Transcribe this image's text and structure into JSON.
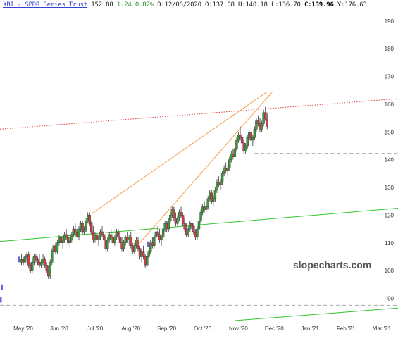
{
  "header": {
    "symbol": "XBI",
    "name_sep": " - ",
    "name": "SPDR Series Trust",
    "last": "152.88",
    "change": "1.24",
    "change_pct": "0.82%",
    "date_label": "D:",
    "date": "12/08/2020",
    "open_label": "O:",
    "open": "137.08",
    "high_label": "H:",
    "high": "140.18",
    "low_label": "L:",
    "low": "136.70",
    "close_label": "C:",
    "close": "139.96",
    "y_label": "Y:",
    "y": "176.63"
  },
  "watermark": "slopecharts.com",
  "colors": {
    "up_candle": "#3a9a3a",
    "down_candle": "#d23b52",
    "trendline_orange": "#f5a04a",
    "trendline_green": "#2ec52e",
    "trendline_red_dotted": "#dd4444",
    "dashed_level": "#aaaaaa",
    "volume_marker": "#6b6bd8"
  },
  "chart_data": {
    "type": "candlestick",
    "ylim": [
      82,
      194
    ],
    "y_ticks": [
      "190",
      "180",
      "170",
      "160",
      "150",
      "140",
      "130",
      "120",
      "110",
      "100",
      "90"
    ],
    "y_tick_values": [
      190,
      180,
      170,
      160,
      150,
      140,
      130,
      120,
      110,
      100,
      90
    ],
    "x_ticks": [
      "May '20",
      "Jun '20",
      "Jul '20",
      "Aug '20",
      "Sep '20",
      "Oct '20",
      "Nov '20",
      "Dec '20",
      "Jan '21",
      "Feb '21",
      "Mar '21"
    ],
    "x_tick_months": [
      0,
      1,
      2,
      3,
      4,
      5,
      6,
      7,
      8,
      9,
      10
    ],
    "xlim_months": [
      -0.55,
      10.55
    ],
    "series": [
      {
        "values": [
          [
            0.05,
            103,
            106,
            102,
            104
          ],
          [
            0.1,
            104,
            105,
            102,
            103
          ],
          [
            0.15,
            103,
            106,
            102,
            105
          ],
          [
            0.2,
            105,
            107,
            104,
            106
          ],
          [
            0.25,
            106,
            107,
            101,
            102
          ],
          [
            0.3,
            102,
            103,
            99,
            100
          ],
          [
            0.35,
            100,
            104,
            99,
            103
          ],
          [
            0.4,
            103,
            106,
            102,
            105
          ],
          [
            0.45,
            105,
            106,
            103,
            104
          ],
          [
            0.5,
            104,
            105,
            102,
            103
          ],
          [
            0.55,
            103,
            106,
            101,
            102
          ],
          [
            0.6,
            102,
            104,
            101,
            103
          ],
          [
            0.65,
            103,
            106,
            102,
            104
          ],
          [
            0.7,
            104,
            105,
            101,
            102
          ],
          [
            0.75,
            102,
            103,
            99,
            100
          ],
          [
            0.8,
            100,
            102,
            97,
            98
          ],
          [
            0.85,
            98,
            104,
            97,
            103
          ],
          [
            0.9,
            103,
            108,
            102,
            107
          ],
          [
            0.95,
            107,
            110,
            106,
            109
          ],
          [
            1.0,
            109,
            110,
            106,
            107
          ],
          [
            1.05,
            107,
            111,
            106,
            110
          ],
          [
            1.1,
            110,
            113,
            109,
            112
          ],
          [
            1.15,
            112,
            113,
            109,
            110
          ],
          [
            1.2,
            110,
            112,
            108,
            111
          ],
          [
            1.25,
            111,
            114,
            110,
            113
          ],
          [
            1.3,
            113,
            115,
            111,
            112
          ],
          [
            1.35,
            112,
            113,
            109,
            110
          ],
          [
            1.4,
            110,
            112,
            108,
            111
          ],
          [
            1.45,
            111,
            114,
            110,
            113
          ],
          [
            1.5,
            113,
            116,
            112,
            115
          ],
          [
            1.55,
            115,
            117,
            113,
            114
          ],
          [
            1.6,
            114,
            115,
            111,
            112
          ],
          [
            1.65,
            112,
            116,
            111,
            115
          ],
          [
            1.7,
            115,
            118,
            114,
            117
          ],
          [
            1.75,
            117,
            118,
            113,
            114
          ],
          [
            1.8,
            114,
            116,
            113,
            115
          ],
          [
            1.85,
            115,
            119,
            114,
            118
          ],
          [
            1.9,
            118,
            121,
            117,
            120
          ],
          [
            1.95,
            120,
            121,
            116,
            117
          ],
          [
            2.0,
            117,
            118,
            113,
            114
          ],
          [
            2.05,
            114,
            116,
            110,
            111
          ],
          [
            2.1,
            111,
            114,
            110,
            113
          ],
          [
            2.15,
            113,
            115,
            110,
            111
          ],
          [
            2.2,
            111,
            113,
            109,
            112
          ],
          [
            2.25,
            112,
            115,
            111,
            114
          ],
          [
            2.3,
            114,
            116,
            112,
            113
          ],
          [
            2.35,
            113,
            114,
            110,
            111
          ],
          [
            2.4,
            111,
            112,
            107,
            108
          ],
          [
            2.45,
            108,
            112,
            107,
            111
          ],
          [
            2.5,
            111,
            114,
            110,
            113
          ],
          [
            2.55,
            113,
            115,
            111,
            112
          ],
          [
            2.6,
            112,
            114,
            109,
            110
          ],
          [
            2.65,
            110,
            113,
            109,
            112
          ],
          [
            2.7,
            112,
            115,
            111,
            114
          ],
          [
            2.75,
            114,
            115,
            111,
            112
          ],
          [
            2.8,
            112,
            113,
            109,
            110
          ],
          [
            2.85,
            110,
            112,
            107,
            108
          ],
          [
            2.9,
            108,
            111,
            107,
            110
          ],
          [
            2.95,
            110,
            113,
            109,
            112
          ],
          [
            3.0,
            112,
            114,
            110,
            111
          ],
          [
            3.05,
            111,
            113,
            109,
            112
          ],
          [
            3.1,
            112,
            114,
            108,
            109
          ],
          [
            3.15,
            109,
            110,
            106,
            107
          ],
          [
            3.2,
            107,
            110,
            106,
            109
          ],
          [
            3.25,
            109,
            112,
            108,
            111
          ],
          [
            3.3,
            111,
            112,
            107,
            108
          ],
          [
            3.35,
            108,
            109,
            104,
            105
          ],
          [
            3.4,
            105,
            108,
            103,
            107
          ],
          [
            3.45,
            107,
            109,
            104,
            105
          ],
          [
            3.5,
            105,
            106,
            101,
            102
          ],
          [
            3.55,
            102,
            106,
            101,
            105
          ],
          [
            3.6,
            105,
            108,
            104,
            107
          ],
          [
            3.65,
            107,
            111,
            106,
            110
          ],
          [
            3.7,
            110,
            112,
            108,
            109
          ],
          [
            3.75,
            109,
            113,
            108,
            112
          ],
          [
            3.8,
            112,
            115,
            111,
            114
          ],
          [
            3.85,
            114,
            116,
            112,
            113
          ],
          [
            3.9,
            113,
            115,
            110,
            111
          ],
          [
            3.95,
            111,
            113,
            109,
            112
          ],
          [
            4.0,
            112,
            116,
            111,
            115
          ],
          [
            4.05,
            115,
            118,
            114,
            117
          ],
          [
            4.1,
            117,
            118,
            114,
            115
          ],
          [
            4.15,
            115,
            119,
            114,
            118
          ],
          [
            4.2,
            118,
            121,
            117,
            120
          ],
          [
            4.25,
            120,
            123,
            119,
            122
          ],
          [
            4.3,
            122,
            123,
            118,
            119
          ],
          [
            4.35,
            119,
            121,
            116,
            117
          ],
          [
            4.4,
            117,
            120,
            116,
            119
          ],
          [
            4.45,
            119,
            122,
            118,
            121
          ],
          [
            4.5,
            121,
            123,
            119,
            120
          ],
          [
            4.55,
            120,
            121,
            116,
            117
          ],
          [
            4.6,
            117,
            119,
            114,
            115
          ],
          [
            4.65,
            115,
            117,
            112,
            113
          ],
          [
            4.7,
            113,
            116,
            112,
            115
          ],
          [
            4.75,
            115,
            118,
            114,
            117
          ],
          [
            4.8,
            117,
            119,
            115,
            116
          ],
          [
            4.85,
            116,
            117,
            113,
            114
          ],
          [
            4.9,
            114,
            115,
            111,
            112
          ],
          [
            4.95,
            112,
            116,
            111,
            115
          ],
          [
            5.0,
            115,
            119,
            114,
            118
          ],
          [
            5.05,
            118,
            122,
            117,
            121
          ],
          [
            5.1,
            121,
            124,
            120,
            123
          ],
          [
            5.15,
            123,
            125,
            121,
            122
          ],
          [
            5.2,
            122,
            124,
            120,
            123
          ],
          [
            5.25,
            123,
            127,
            122,
            126
          ],
          [
            5.3,
            126,
            129,
            125,
            128
          ],
          [
            5.35,
            128,
            129,
            124,
            125
          ],
          [
            5.4,
            125,
            127,
            123,
            126
          ],
          [
            5.45,
            126,
            130,
            125,
            129
          ],
          [
            5.5,
            129,
            133,
            128,
            132
          ],
          [
            5.55,
            132,
            134,
            130,
            131
          ],
          [
            5.6,
            131,
            133,
            129,
            132
          ],
          [
            5.65,
            132,
            136,
            131,
            135
          ],
          [
            5.7,
            135,
            138,
            134,
            137
          ],
          [
            5.75,
            137,
            139,
            135,
            136
          ],
          [
            5.8,
            136,
            138,
            134,
            137
          ],
          [
            5.85,
            137,
            141,
            136,
            140
          ],
          [
            5.9,
            140,
            143,
            139,
            142
          ],
          [
            5.95,
            142,
            144,
            140,
            141
          ],
          [
            6.0,
            141,
            145,
            140,
            144
          ],
          [
            6.05,
            144,
            148,
            143,
            147
          ],
          [
            6.1,
            147,
            150,
            146,
            149
          ],
          [
            6.15,
            149,
            152,
            147,
            148
          ],
          [
            6.2,
            148,
            150,
            145,
            146
          ],
          [
            6.25,
            146,
            147,
            142,
            143
          ],
          [
            6.3,
            143,
            146,
            142,
            145
          ],
          [
            6.35,
            145,
            149,
            144,
            148
          ],
          [
            6.4,
            148,
            151,
            147,
            150
          ],
          [
            6.45,
            150,
            151,
            146,
            147
          ],
          [
            6.5,
            147,
            149,
            145,
            148
          ],
          [
            6.55,
            148,
            152,
            147,
            151
          ],
          [
            6.6,
            151,
            155,
            150,
            154
          ],
          [
            6.65,
            154,
            156,
            152,
            153
          ],
          [
            6.7,
            153,
            155,
            150,
            151
          ],
          [
            6.75,
            151,
            154,
            150,
            153
          ],
          [
            6.8,
            153,
            158,
            152,
            157
          ],
          [
            6.85,
            157,
            159,
            154,
            155
          ],
          [
            6.9,
            155,
            157,
            151,
            152
          ]
        ]
      }
    ],
    "trendlines": [
      {
        "kind": "orange_upper",
        "from": [
          2.0,
          120.5
        ],
        "to": [
          6.9,
          164.5
        ]
      },
      {
        "kind": "orange_lower",
        "from": [
          3.35,
          110.0
        ],
        "to": [
          7.05,
          164.5
        ]
      },
      {
        "kind": "green",
        "from": [
          -0.55,
          110.5
        ],
        "to": [
          10.55,
          122.5
        ]
      },
      {
        "kind": "green_lower",
        "from": [
          6.0,
          82.0
        ],
        "to": [
          10.55,
          86.5
        ]
      },
      {
        "kind": "red_dotted",
        "from": [
          -0.55,
          151.0
        ],
        "to": [
          10.55,
          162.0
        ]
      },
      {
        "kind": "dashed_level",
        "from": [
          6.55,
          142.3
        ],
        "to": [
          10.55,
          142.3
        ]
      },
      {
        "kind": "dashed_level",
        "from": [
          -0.55,
          87.5
        ],
        "to": [
          10.55,
          87.5
        ]
      }
    ],
    "markers": [
      {
        "x": -0.02,
        "y": 104
      },
      {
        "x": 3.58,
        "y": 109.5
      },
      {
        "x": -0.5,
        "y": 94
      },
      {
        "x": -0.53,
        "y": 89.5
      }
    ],
    "grid": false
  }
}
